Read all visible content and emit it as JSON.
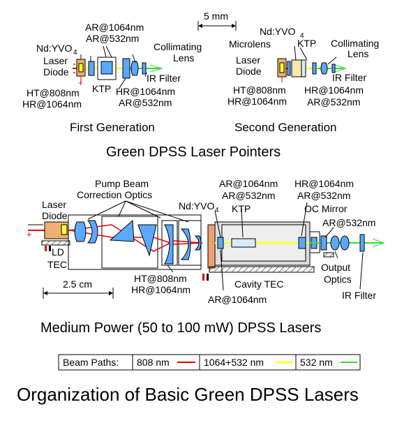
{
  "top": {
    "scale_label": "5 mm",
    "first": {
      "ar1064": "AR@1064nm",
      "ar532": "AR@532nm",
      "ndyvo4": "Nd:YVO",
      "ndyvo4_sub": "4",
      "laser": "Laser",
      "diode": "Diode",
      "collimating": "Collimating",
      "lens": "Lens",
      "ir_filter": "IR Filter",
      "ktp": "KTP",
      "ht808": "HT@808nm",
      "hr1064": "HR@1064nm",
      "hr1064_r": "HR@1064nm",
      "ar532_r": "AR@532nm",
      "caption": "First Generation"
    },
    "second": {
      "ndyvo4": "Nd:YVO",
      "ndyvo4_sub": "4",
      "microlens": "Microlens",
      "ktp": "KTP",
      "collimating": "Collimating",
      "lens": "Lens",
      "laser": "Laser",
      "diode": "Diode",
      "ir_filter": "IR Filter",
      "ht808": "HT@808nm",
      "hr1064": "HR@1064nm",
      "hr1064_r": "HR@1064nm",
      "ar532_r": "AR@532nm",
      "caption": "Second Generation"
    },
    "section_title": "Green DPSS Laser Pointers"
  },
  "mid": {
    "laser": "Laser",
    "diode": "Diode",
    "pump1": "Pump Beam",
    "pump2": "Correction Optics",
    "ndyvo4": "Nd:YVO",
    "ndyvo4_sub": "4",
    "ar1064": "AR@1064nm",
    "ar532": "AR@532nm",
    "ktp": "KTP",
    "hr1064": "HR@1064nm",
    "ar532_b": "AR@532nm",
    "oc_mirror": "OC Mirror",
    "ar532_c": "AR@532nm",
    "ld": "LD",
    "tec": "TEC",
    "scale": "2.5 cm",
    "ht808": "HT@808nm",
    "hr1064_b": "HR@1064nm",
    "cavity_tec": "Cavity TEC",
    "ar1064_b": "AR@1064nm",
    "output": "Output",
    "optics": "Optics",
    "ir_filter": "IR Filter",
    "section_title": "Medium Power (50 to 100 mW) DPSS Lasers"
  },
  "legend": {
    "label": "Beam Paths:",
    "items": [
      {
        "text": "808 nm",
        "color": "#e00000"
      },
      {
        "text": "1064+532 nm",
        "color": "#ffff30"
      },
      {
        "text": "532 nm",
        "color": "#33dd33"
      }
    ]
  },
  "title": "Organization of Basic Green DPSS Lasers",
  "colors": {
    "diode": "#f0b070",
    "optic": "#5aa8ff",
    "beige": "#f8e8b0",
    "crystal": "#d8ecff"
  }
}
